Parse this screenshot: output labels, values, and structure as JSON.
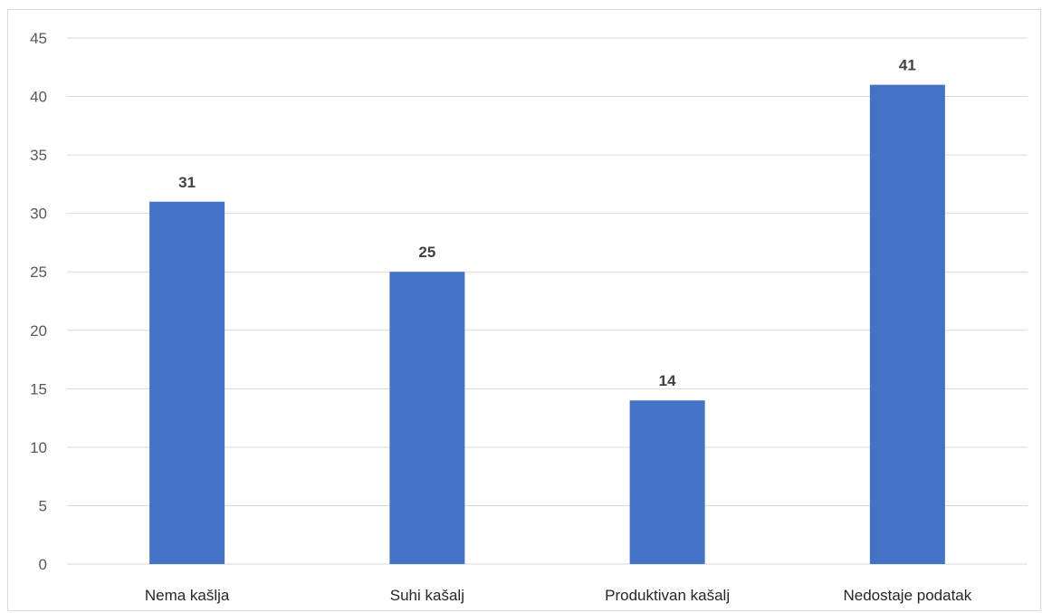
{
  "chart_data": {
    "type": "bar",
    "title": "",
    "xlabel": "",
    "ylabel": "",
    "categories": [
      "Nema kašlja",
      "Suhi kašalj",
      "Produktivan kašalj",
      "Nedostaje podatak"
    ],
    "values": [
      31,
      25,
      14,
      41
    ],
    "data_labels": [
      "31",
      "25",
      "14",
      "41"
    ],
    "ylim": [
      0,
      45
    ],
    "yticks": [
      0,
      5,
      10,
      15,
      20,
      25,
      30,
      35,
      40,
      45
    ],
    "ytick_labels": [
      "0",
      "5",
      "10",
      "15",
      "20",
      "25",
      "30",
      "35",
      "40",
      "45"
    ],
    "grid": true,
    "legend": "none",
    "colors": {
      "bar": "#4472c4",
      "grid": "#d9d9d9",
      "axis_text": "#595959",
      "category_text": "#262626",
      "data_label_text": "#404040"
    }
  }
}
